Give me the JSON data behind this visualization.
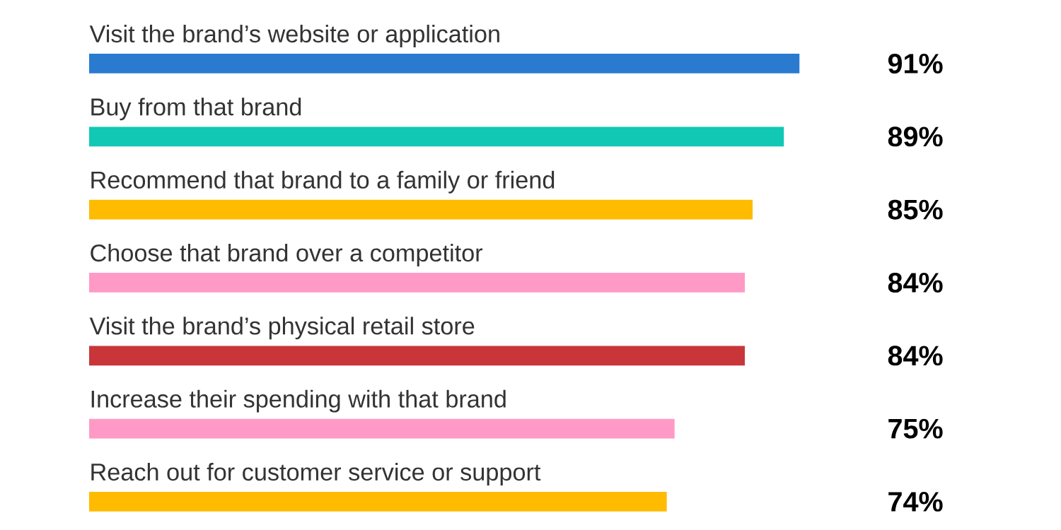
{
  "chart_data": {
    "type": "bar",
    "orientation": "horizontal",
    "categories": [
      "Visit the brand’s website or application",
      "Buy from that brand",
      "Recommend that brand to a family or friend",
      "Choose that brand over a competitor",
      "Visit the brand’s physical retail store",
      "Increase their spending with that brand",
      "Reach out for customer service or support"
    ],
    "values": [
      91,
      89,
      85,
      84,
      84,
      75,
      74
    ],
    "colors": [
      "#2a7ad0",
      "#11c8b4",
      "#ffbb00",
      "#ff9ac6",
      "#c8363a",
      "#ff9ac6",
      "#ffbb00"
    ],
    "value_labels": [
      "91%",
      "89%",
      "85%",
      "84%",
      "84%",
      "75%",
      "74%"
    ]
  }
}
